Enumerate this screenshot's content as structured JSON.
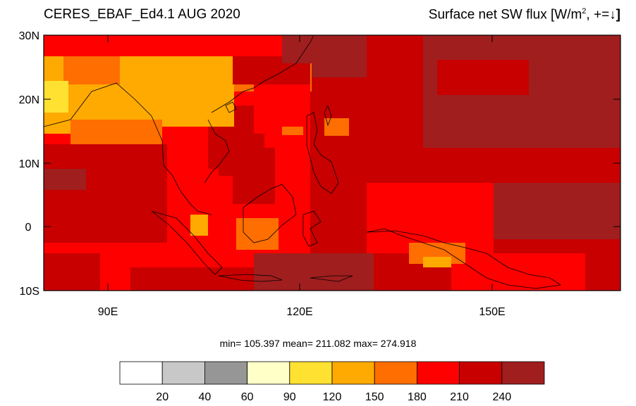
{
  "title": {
    "left": "CERES_EBAF_Ed4.1 AUG 2020",
    "right_text": "Surface net SW flux [W/m",
    "right_sup": "2",
    "right_tail": ", +=↓",
    "right_bracket": "]"
  },
  "axes": {
    "lat_labels": [
      "30N",
      "20N",
      "10N",
      "0",
      "10S"
    ],
    "lon_labels": [
      "90E",
      "120E",
      "150E"
    ]
  },
  "stats": {
    "text": "min= 105.397   mean= 211.082   max= 274.918"
  },
  "colorbar": {
    "colors": [
      "#ffffff",
      "#c8c8c8",
      "#969696",
      "#ffffc8",
      "#ffe132",
      "#ffaa00",
      "#ff6e00",
      "#ff0000",
      "#c80000",
      "#a01e1e"
    ],
    "labels": [
      "20",
      "40",
      "60",
      "90",
      "120",
      "150",
      "180",
      "210",
      "240"
    ]
  },
  "chart_data": {
    "type": "heatmap",
    "title": "CERES_EBAF_Ed4.1 AUG 2020",
    "variable": "Surface net SW flux [W/m2, +=↓]",
    "lon_range": [
      80,
      170
    ],
    "lat_range": [
      -10,
      30
    ],
    "levels": [
      20,
      40,
      60,
      90,
      120,
      150,
      180,
      210,
      240
    ],
    "min": 105.397,
    "mean": 211.082,
    "max": 274.918
  }
}
